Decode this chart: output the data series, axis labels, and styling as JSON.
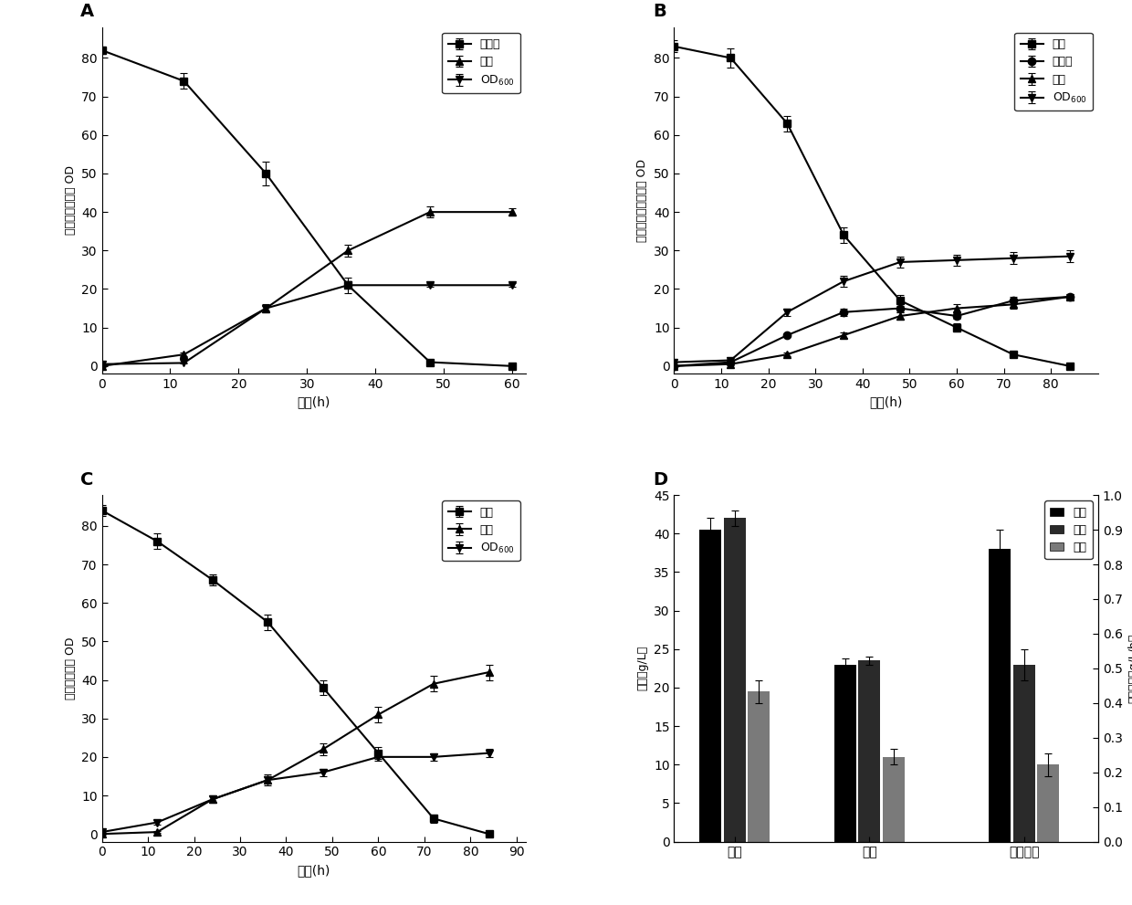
{
  "panel_A": {
    "label": "A",
    "xlabel": "时间(h)",
    "ylabel": "葡萄糖、甘油和 OD",
    "xlim": [
      0,
      62
    ],
    "ylim": [
      -2,
      88
    ],
    "xticks": [
      0,
      10,
      20,
      30,
      40,
      50,
      60
    ],
    "yticks": [
      0,
      10,
      20,
      30,
      40,
      50,
      60,
      70,
      80
    ],
    "series": [
      {
        "name": "葡萄糖",
        "marker": "s",
        "x": [
          0,
          12,
          24,
          36,
          48,
          60
        ],
        "y": [
          82,
          74,
          50,
          21,
          1,
          0
        ],
        "yerr": [
          1.0,
          2.0,
          3.0,
          2.0,
          0.5,
          0.3
        ]
      },
      {
        "name": "甘油",
        "marker": "^",
        "x": [
          0,
          12,
          24,
          36,
          48,
          60
        ],
        "y": [
          0,
          3,
          15,
          30,
          40,
          40
        ],
        "yerr": [
          0.2,
          0.5,
          1.0,
          1.5,
          1.5,
          1.0
        ]
      },
      {
        "name": "OD600",
        "marker": "v",
        "x": [
          0,
          12,
          24,
          36,
          48,
          60
        ],
        "y": [
          0.5,
          0.8,
          15,
          21,
          21,
          21
        ],
        "yerr": [
          0.1,
          0.2,
          0.5,
          1.0,
          0.5,
          0.5
        ]
      }
    ],
    "legend_labels": [
      "葡萄糖",
      "甘油",
      "OD$_{600}$"
    ]
  },
  "panel_B": {
    "label": "B",
    "xlabel": "时间(h)",
    "ylabel": "木糖、木糖醇甘油和 OD",
    "xlim": [
      0,
      90
    ],
    "ylim": [
      -2,
      88
    ],
    "xticks": [
      0,
      10,
      20,
      30,
      40,
      50,
      60,
      70,
      80
    ],
    "yticks": [
      0,
      10,
      20,
      30,
      40,
      50,
      60,
      70,
      80
    ],
    "series": [
      {
        "name": "木糖",
        "marker": "s",
        "x": [
          0,
          12,
          24,
          36,
          48,
          60,
          72,
          84
        ],
        "y": [
          83,
          80,
          63,
          34,
          17,
          10,
          3,
          0
        ],
        "yerr": [
          1.5,
          2.5,
          2.0,
          2.0,
          1.5,
          1.0,
          0.5,
          0.2
        ]
      },
      {
        "name": "木糖醇",
        "marker": "o",
        "x": [
          0,
          12,
          24,
          36,
          48,
          60,
          72,
          84
        ],
        "y": [
          0,
          1,
          8,
          14,
          15,
          13,
          17,
          18
        ],
        "yerr": [
          0.1,
          0.2,
          0.5,
          1.0,
          1.0,
          0.8,
          1.0,
          0.8
        ]
      },
      {
        "name": "甘油",
        "marker": "^",
        "x": [
          0,
          12,
          24,
          36,
          48,
          60,
          72,
          84
        ],
        "y": [
          0,
          0.5,
          3,
          8,
          13,
          15,
          16,
          18
        ],
        "yerr": [
          0.1,
          0.2,
          0.5,
          0.8,
          1.0,
          1.0,
          1.0,
          0.8
        ]
      },
      {
        "name": "OD600",
        "marker": "v",
        "x": [
          0,
          12,
          24,
          36,
          48,
          60,
          72,
          84
        ],
        "y": [
          1,
          1.5,
          14,
          22,
          27,
          27.5,
          28,
          28.5
        ],
        "yerr": [
          0.2,
          0.3,
          1.0,
          1.5,
          1.5,
          1.5,
          1.5,
          1.5
        ]
      }
    ],
    "legend_labels": [
      "木糖",
      "木糖醇",
      "甘油",
      "OD$_{600}$"
    ]
  },
  "panel_C": {
    "label": "C",
    "xlabel": "时间(h)",
    "ylabel": "果糖、甘油和 OD",
    "xlim": [
      0,
      92
    ],
    "ylim": [
      -2,
      88
    ],
    "xticks": [
      0,
      10,
      20,
      30,
      40,
      50,
      60,
      70,
      80,
      90
    ],
    "yticks": [
      0,
      10,
      20,
      30,
      40,
      50,
      60,
      70,
      80
    ],
    "series": [
      {
        "name": "果糖",
        "marker": "s",
        "x": [
          0,
          12,
          24,
          36,
          48,
          60,
          72,
          84
        ],
        "y": [
          84,
          76,
          66,
          55,
          38,
          21,
          4,
          0
        ],
        "yerr": [
          1.5,
          2.0,
          1.5,
          2.0,
          2.0,
          1.5,
          1.0,
          0.5
        ]
      },
      {
        "name": "甘油",
        "marker": "^",
        "x": [
          0,
          12,
          24,
          36,
          48,
          60,
          72,
          84
        ],
        "y": [
          0,
          0.5,
          9,
          14,
          22,
          31,
          39,
          42
        ],
        "yerr": [
          0.1,
          0.2,
          1.0,
          1.5,
          1.5,
          2.0,
          2.0,
          2.0
        ]
      },
      {
        "name": "OD600",
        "marker": "v",
        "x": [
          0,
          12,
          24,
          36,
          48,
          60,
          72,
          84
        ],
        "y": [
          0.5,
          3,
          9,
          14,
          16,
          20,
          20,
          21
        ],
        "yerr": [
          0.1,
          0.5,
          1.0,
          1.0,
          1.0,
          1.0,
          1.0,
          1.0
        ]
      }
    ],
    "legend_labels": [
      "果糖",
      "甘油",
      "OD$_{600}$"
    ]
  },
  "panel_D": {
    "label": "D",
    "xlabel_groups": [
      "产量",
      "产率",
      "生产速率"
    ],
    "ylabel_left": "产量（g/L）",
    "ylabel_right": "生产速率（g/L/h）",
    "ylim_left": [
      0,
      45
    ],
    "ylim_right": [
      0,
      1.0
    ],
    "yticks_left": [
      0,
      5,
      10,
      15,
      20,
      25,
      30,
      35,
      40,
      45
    ],
    "yticks_right": [
      0.0,
      0.1,
      0.2,
      0.3,
      0.4,
      0.5,
      0.6,
      0.7,
      0.8,
      0.9,
      1.0
    ],
    "bar_groups": [
      {
        "group": "产量",
        "bars": [
          {
            "label": "果糖",
            "value": 40.5,
            "err": 1.5
          },
          {
            "label": "甘油",
            "value": 42.0,
            "err": 1.0
          },
          {
            "label": "木糖",
            "value": 19.5,
            "err": 1.5
          }
        ]
      },
      {
        "group": "产率",
        "bars": [
          {
            "label": "果糖",
            "value": 23.0,
            "err": 0.8
          },
          {
            "label": "甘油",
            "value": 23.5,
            "err": 0.5
          },
          {
            "label": "木糖",
            "value": 11.0,
            "err": 1.0
          }
        ]
      },
      {
        "group": "生产速率",
        "bars": [
          {
            "label": "果糖",
            "value": 38.0,
            "err": 2.5
          },
          {
            "label": "甘油",
            "value": 23.0,
            "err": 2.0
          },
          {
            "label": "木糖",
            "value": 10.0,
            "err": 1.5
          }
        ]
      }
    ],
    "legend_labels": [
      "果糖",
      "甘油",
      "木糖"
    ],
    "bar_colors": [
      "#000000",
      "#2a2a2a",
      "#7a7a7a"
    ]
  }
}
